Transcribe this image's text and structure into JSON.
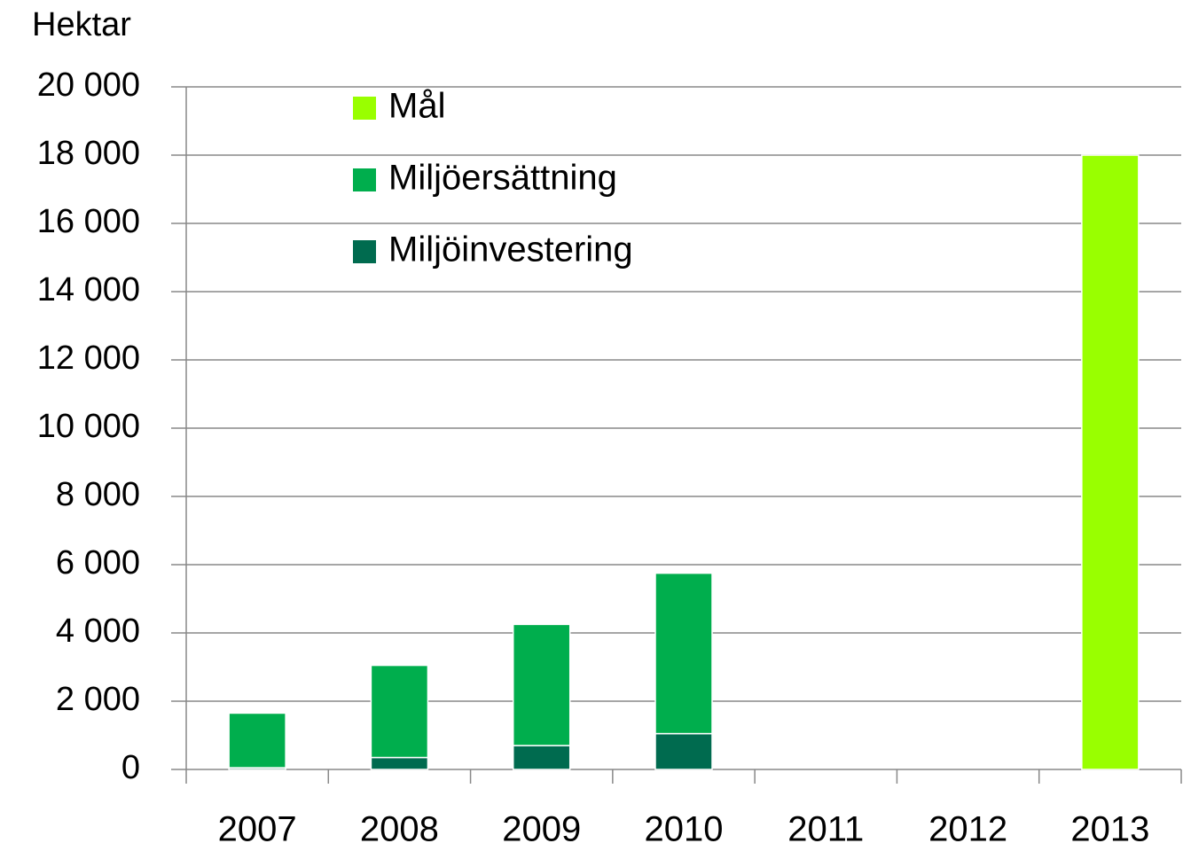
{
  "chart_data": {
    "type": "stacked_bar",
    "title": "Hektar",
    "categories": [
      "2007",
      "2008",
      "2009",
      "2010",
      "2011",
      "2012",
      "2013"
    ],
    "series": [
      {
        "name": "Miljöinvestering",
        "color": "#006b4f",
        "values": [
          50,
          350,
          700,
          1050,
          null,
          null,
          null
        ]
      },
      {
        "name": "Miljöersättning",
        "color": "#00ae4d",
        "values": [
          1600,
          2700,
          3550,
          4700,
          null,
          null,
          null
        ]
      },
      {
        "name": "Mål",
        "color": "#99ff00",
        "values": [
          null,
          null,
          null,
          null,
          null,
          null,
          18000
        ]
      }
    ],
    "ylim": [
      0,
      20000
    ],
    "yticks": [
      0,
      {
        "value": 2000,
        "label": "2 000"
      },
      {
        "value": 4000,
        "label": "4 000"
      },
      {
        "value": 6000,
        "label": "6 000"
      },
      {
        "value": 8000,
        "label": "8 000"
      },
      {
        "value": 10000,
        "label": "10 000"
      },
      {
        "value": 12000,
        "label": "12 000"
      },
      {
        "value": 14000,
        "label": "14 000"
      },
      {
        "value": 16000,
        "label": "16 000"
      },
      {
        "value": 18000,
        "label": "18 000"
      },
      {
        "value": 20000,
        "label": "20 000"
      }
    ],
    "grid": true,
    "legend": "top-left"
  }
}
